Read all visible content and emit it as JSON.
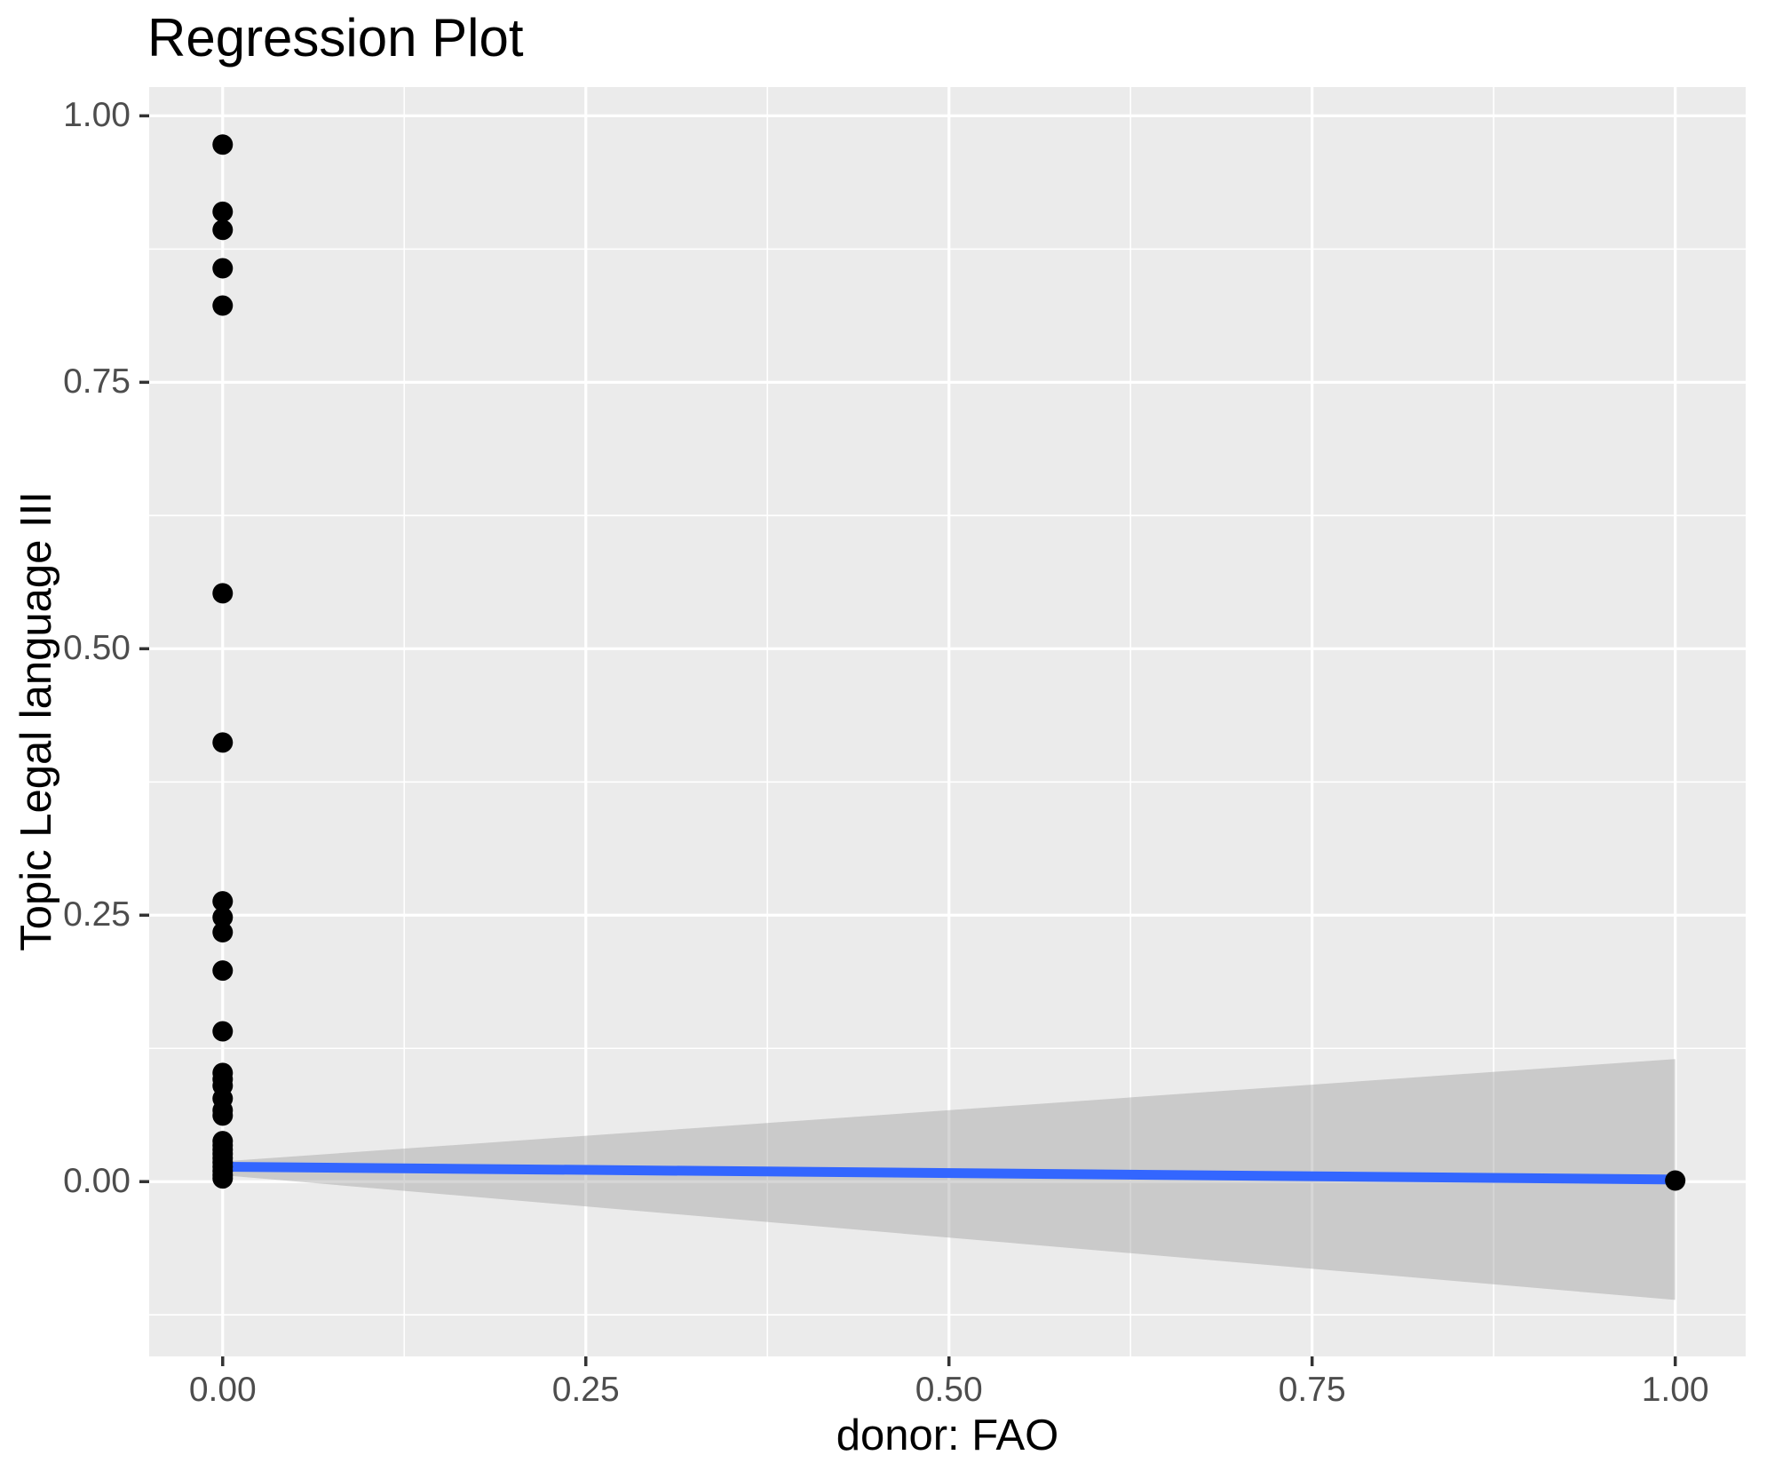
{
  "title": "Regression Plot",
  "chart_data": {
    "type": "scatter",
    "title": "Regression Plot",
    "xlabel": "donor: FAO",
    "ylabel": "Topic Legal language III",
    "xlim": [
      -0.0506,
      1.0485
    ],
    "ylim": [
      -0.164,
      1.027
    ],
    "grid": true,
    "legend": false,
    "x_ticks": {
      "values": [
        0,
        0.25,
        0.5,
        0.75,
        1
      ],
      "labels": [
        "0.00",
        "0.25",
        "0.50",
        "0.75",
        "1.00"
      ]
    },
    "y_ticks": {
      "values": [
        0,
        0.25,
        0.5,
        0.75,
        1
      ],
      "labels": [
        "0.00",
        "0.25",
        "0.50",
        "0.75",
        "1.00"
      ]
    },
    "x_minor": [
      0.125,
      0.375,
      0.625,
      0.875
    ],
    "y_minor": [
      -0.125,
      0.125,
      0.375,
      0.625,
      0.875
    ],
    "style": {
      "panel_bg": "#EBEBEB",
      "grid_color": "#FFFFFF",
      "tick_mark_color": "#333333",
      "tick_label_color": "#4D4D4D",
      "title_color": "#000000",
      "axis_title_color": "#000000",
      "point_color": "#000000",
      "line_color": "#3366FF",
      "band_color": "#999999",
      "band_opacity": 0.4
    },
    "series": [
      {
        "name": "confidence-band",
        "type": "area",
        "x": [
          0,
          1
        ],
        "y_upper": [
          0.019,
          0.115
        ],
        "y_lower": [
          0.006,
          -0.111
        ]
      },
      {
        "name": "regression-line",
        "type": "line",
        "x": [
          0,
          1
        ],
        "y": [
          0.014,
          0.002
        ]
      },
      {
        "name": "observations",
        "type": "scatter",
        "points": [
          [
            0,
            0.973
          ],
          [
            0,
            0.91
          ],
          [
            0,
            0.893
          ],
          [
            0,
            0.857
          ],
          [
            0,
            0.822
          ],
          [
            0,
            0.552
          ],
          [
            0,
            0.412
          ],
          [
            0,
            0.263
          ],
          [
            0,
            0.248
          ],
          [
            0,
            0.234
          ],
          [
            0,
            0.198
          ],
          [
            0,
            0.141
          ],
          [
            0,
            0.102
          ],
          [
            0,
            0.096
          ],
          [
            0,
            0.09
          ],
          [
            0,
            0.078
          ],
          [
            0,
            0.067
          ],
          [
            0,
            0.062
          ],
          [
            0,
            0.038
          ],
          [
            0,
            0.034
          ],
          [
            0,
            0.03
          ],
          [
            0,
            0.026
          ],
          [
            0,
            0.022
          ],
          [
            0,
            0.018
          ],
          [
            0,
            0.014
          ],
          [
            0,
            0.01
          ],
          [
            0,
            0.006
          ],
          [
            0,
            0.003
          ],
          [
            1,
            0.001
          ]
        ]
      }
    ]
  }
}
